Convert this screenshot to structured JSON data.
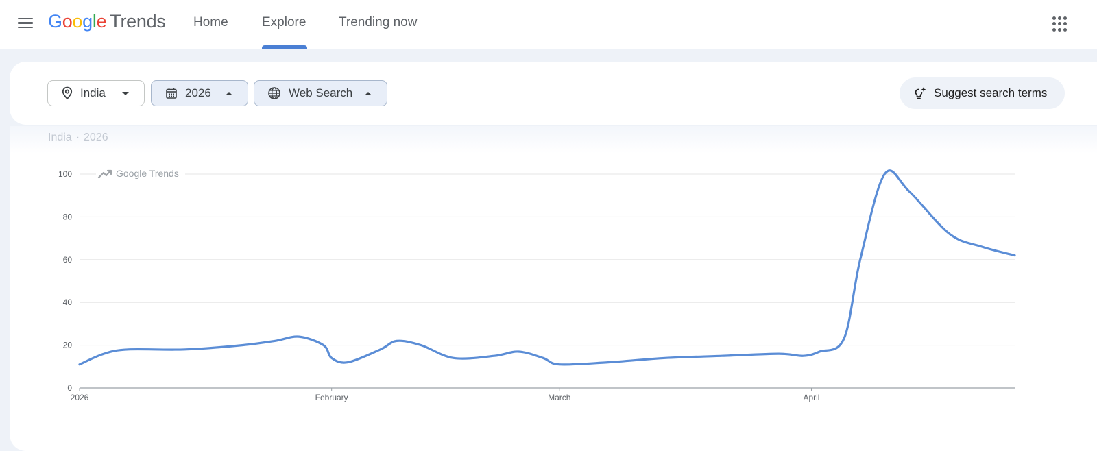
{
  "header": {
    "logo_google": [
      "G",
      "o",
      "o",
      "g",
      "l",
      "e"
    ],
    "logo_product": "Trends",
    "nav": {
      "home": "Home",
      "explore": "Explore",
      "trending": "Trending now"
    },
    "active_tab": "Explore"
  },
  "filters": {
    "country": "India",
    "year": "2026",
    "property": "Web Search",
    "suggest": "Suggest search terms"
  },
  "context": {
    "country": "India",
    "separator": "·",
    "year": "2026"
  },
  "watermark": "Google Trends",
  "colors": {
    "line": "#5b8dd6",
    "accent": "#4a7fd4"
  },
  "chart_data": {
    "type": "line",
    "ylim": [
      0,
      100
    ],
    "yticks": [
      0,
      20,
      40,
      60,
      80,
      100
    ],
    "xlim": [
      "2026-01-01",
      "2026-04-26"
    ],
    "xticks": [
      {
        "date": "2026-01-01",
        "label": "2026"
      },
      {
        "date": "2026-02-01",
        "label": "February"
      },
      {
        "date": "2026-03-01",
        "label": "March"
      },
      {
        "date": "2026-04-01",
        "label": "April"
      }
    ],
    "grid": true,
    "series": [
      {
        "points": [
          [
            "2026-01-01",
            11
          ],
          [
            "2026-01-04",
            16
          ],
          [
            "2026-01-07",
            18
          ],
          [
            "2026-01-14",
            18
          ],
          [
            "2026-01-21",
            20
          ],
          [
            "2026-01-25",
            22
          ],
          [
            "2026-01-28",
            24
          ],
          [
            "2026-01-31",
            20
          ],
          [
            "2026-02-01",
            14
          ],
          [
            "2026-02-03",
            12
          ],
          [
            "2026-02-07",
            18
          ],
          [
            "2026-02-09",
            22
          ],
          [
            "2026-02-12",
            20
          ],
          [
            "2026-02-16",
            14
          ],
          [
            "2026-02-21",
            15
          ],
          [
            "2026-02-24",
            17
          ],
          [
            "2026-02-27",
            14
          ],
          [
            "2026-03-01",
            11
          ],
          [
            "2026-03-07",
            12
          ],
          [
            "2026-03-14",
            14
          ],
          [
            "2026-03-21",
            15
          ],
          [
            "2026-03-28",
            16
          ],
          [
            "2026-03-31",
            15
          ],
          [
            "2026-04-02",
            17
          ],
          [
            "2026-04-05",
            23
          ],
          [
            "2026-04-07",
            60
          ],
          [
            "2026-04-10",
            100
          ],
          [
            "2026-04-13",
            92
          ],
          [
            "2026-04-18",
            72
          ],
          [
            "2026-04-22",
            66
          ],
          [
            "2026-04-26",
            62
          ]
        ]
      }
    ]
  }
}
